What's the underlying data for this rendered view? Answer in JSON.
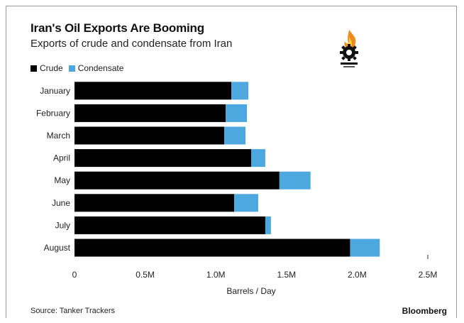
{
  "header": {
    "title": "Iran's Oil Exports Are Booming",
    "subtitle": "Exports of crude and condensate from Iran"
  },
  "footer": {
    "source": "Source: Tanker Trackers",
    "brand": "Bloomberg"
  },
  "colors": {
    "crude": "#000000",
    "condensate": "#4ea8e0"
  },
  "chart_data": {
    "type": "bar",
    "orientation": "horizontal",
    "stacked": true,
    "categories": [
      "January",
      "February",
      "March",
      "April",
      "May",
      "June",
      "July",
      "August"
    ],
    "series": [
      {
        "name": "Crude",
        "values": [
          1.11,
          1.07,
          1.06,
          1.25,
          1.45,
          1.13,
          1.35,
          1.95
        ]
      },
      {
        "name": "Condensate",
        "values": [
          0.12,
          0.15,
          0.15,
          0.1,
          0.22,
          0.17,
          0.04,
          0.21
        ]
      }
    ],
    "xlabel": "Barrels / Day",
    "xlim": [
      0,
      2.5
    ],
    "xticks": [
      {
        "value": 0,
        "label": "0"
      },
      {
        "value": 0.5,
        "label": "0.5M"
      },
      {
        "value": 1.0,
        "label": "1.0M"
      },
      {
        "value": 1.5,
        "label": "1.5M"
      },
      {
        "value": 2.0,
        "label": "2.0M"
      },
      {
        "value": 2.5,
        "label": "2.5M"
      }
    ],
    "legend": "top-left",
    "grid": false
  }
}
